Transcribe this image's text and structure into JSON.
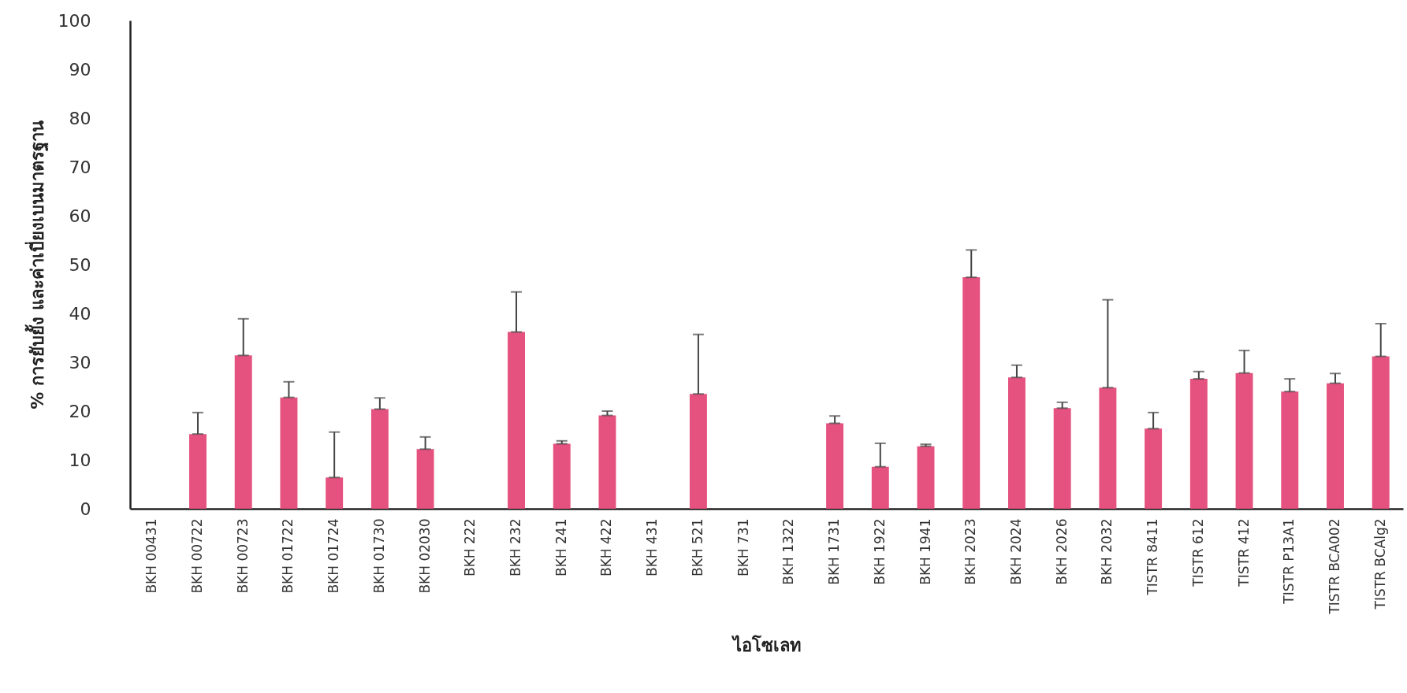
{
  "chart_data": {
    "type": "bar",
    "xlabel": "ไอโซเลท",
    "ylabel": "% การยับยั้ง และค่าเบี่ยงเบนมาตรฐาน",
    "categories": [
      "BKH 00431",
      "BKH 00722",
      "BKH 00723",
      "BKH 01722",
      "BKH 01724",
      "BKH 01730",
      "BKH 02030",
      "BKH 222",
      "BKH 232",
      "BKH 241",
      "BKH 422",
      "BKH 431",
      "BKH 521",
      "BKH 731",
      "BKH 1322",
      "BKH 1731",
      "BKH 1922",
      "BKH 1941",
      "BKH 2023",
      "BKH 2024",
      "BKH 2026",
      "BKH 2032",
      "TISTR 8411",
      "TISTR 612",
      "TISTR 412",
      "TISTR P13A1",
      "TISTR BCA002",
      "TISTR BCAlg2"
    ],
    "values": [
      0,
      15.3,
      31.4,
      22.8,
      6.4,
      20.4,
      12.2,
      0,
      36.2,
      13.3,
      19.1,
      0,
      23.5,
      0,
      0,
      17.5,
      8.6,
      12.8,
      47.4,
      26.9,
      20.6,
      24.8,
      16.4,
      26.6,
      27.8,
      24.0,
      25.7,
      31.2
    ],
    "errors": [
      null,
      [
        15.3,
        19.7
      ],
      [
        31.4,
        38.9
      ],
      [
        22.8,
        26.0
      ],
      [
        6.4,
        15.7
      ],
      [
        20.4,
        22.7
      ],
      [
        12.2,
        14.7
      ],
      null,
      [
        36.2,
        44.4
      ],
      [
        13.3,
        13.9
      ],
      [
        19.1,
        20.0
      ],
      null,
      [
        23.5,
        35.7
      ],
      null,
      null,
      [
        17.5,
        19.0
      ],
      [
        8.6,
        13.4
      ],
      [
        12.8,
        13.2
      ],
      [
        47.4,
        53.0
      ],
      [
        26.9,
        29.4
      ],
      [
        20.6,
        21.8
      ],
      [
        24.8,
        42.8
      ],
      [
        16.4,
        19.7
      ],
      [
        26.6,
        28.1
      ],
      [
        27.8,
        32.4
      ],
      [
        24.0,
        26.6
      ],
      [
        25.7,
        27.7
      ],
      [
        31.2,
        37.9
      ]
    ],
    "color": "#e5527f",
    "ylim": [
      0,
      100
    ],
    "yticks": [
      0,
      10,
      20,
      30,
      40,
      50,
      60,
      70,
      80,
      90,
      100
    ],
    "grid": false
  }
}
